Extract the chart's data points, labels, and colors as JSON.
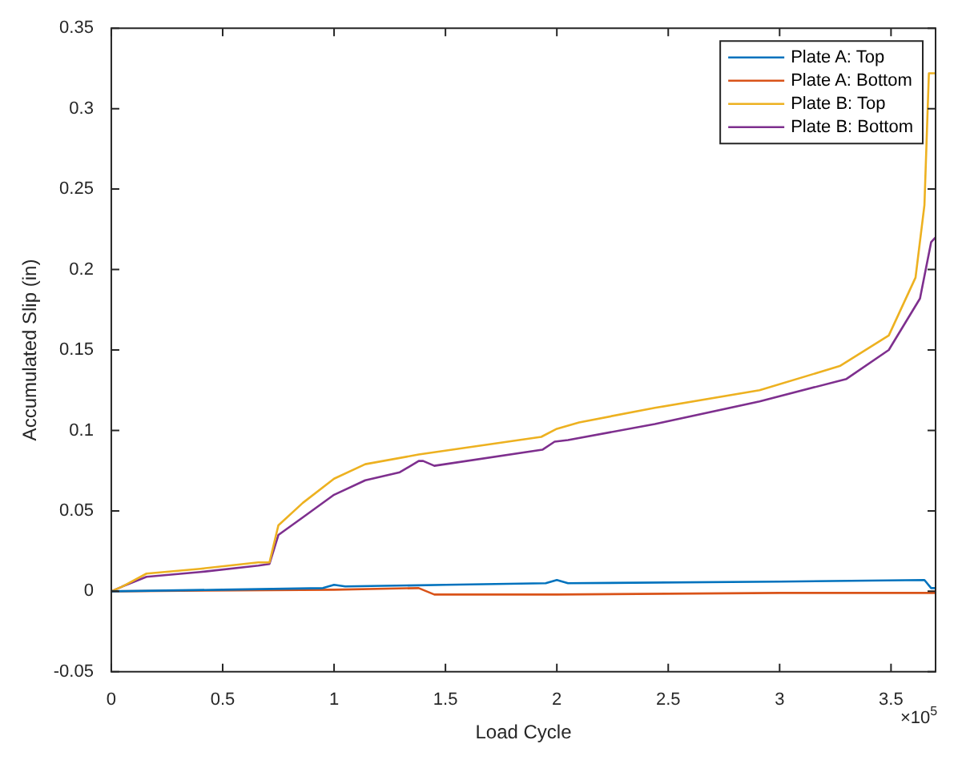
{
  "chart_data": {
    "type": "line",
    "xlabel": "Load Cycle",
    "ylabel": "Accumulated Slip (in)",
    "annotations": [
      "×10$^{5}$"
    ],
    "xlim": [
      0,
      3.7
    ],
    "xticks": [
      0,
      0.5,
      1,
      1.5,
      2,
      2.5,
      3,
      3.5
    ],
    "ylim": [
      -0.05,
      0.35
    ],
    "yticks": [
      -0.05,
      0,
      0.05,
      0.1,
      0.15,
      0.2,
      0.25,
      0.3,
      0.35
    ],
    "grid": false,
    "legend": "top right",
    "marker": "none",
    "line_style": "solid",
    "series": [
      {
        "name": "Plate A: Top",
        "color": "#0072bd",
        "x": [
          0,
          0.5,
          0.95,
          1.0,
          1.05,
          1.5,
          1.95,
          2.0,
          2.05,
          3.0,
          3.65,
          3.68,
          3.7
        ],
        "values": [
          0,
          0.001,
          0.002,
          0.004,
          0.003,
          0.004,
          0.005,
          0.007,
          0.005,
          0.006,
          0.007,
          0.002,
          0.002
        ]
      },
      {
        "name": "Plate A: Bottom",
        "color": "#d95319",
        "x": [
          0,
          1.0,
          1.38,
          1.45,
          2.0,
          3.0,
          3.7
        ],
        "values": [
          0,
          0.001,
          0.002,
          -0.002,
          -0.002,
          -0.001,
          -0.001
        ]
      },
      {
        "name": "Plate B: Top",
        "color": "#edb120",
        "x": [
          0,
          0.05,
          0.158,
          0.4,
          0.66,
          0.71,
          0.75,
          0.86,
          1.0,
          1.14,
          1.38,
          1.93,
          2.0,
          2.1,
          2.44,
          2.91,
          3.27,
          3.49,
          3.61,
          3.65,
          3.67,
          3.7
        ],
        "values": [
          0,
          0.003,
          0.011,
          0.014,
          0.018,
          0.018,
          0.041,
          0.055,
          0.07,
          0.079,
          0.085,
          0.096,
          0.101,
          0.105,
          0.114,
          0.125,
          0.14,
          0.159,
          0.195,
          0.24,
          0.322,
          0.322
        ]
      },
      {
        "name": "Plate B: Bottom",
        "color": "#7e2f8e",
        "x": [
          0,
          0.05,
          0.158,
          0.4,
          0.66,
          0.71,
          0.75,
          0.86,
          1.0,
          1.14,
          1.295,
          1.38,
          1.4,
          1.45,
          1.935,
          1.99,
          2.05,
          2.44,
          2.91,
          3.3,
          3.49,
          3.63,
          3.68,
          3.7
        ],
        "values": [
          0,
          0.003,
          0.009,
          0.012,
          0.016,
          0.017,
          0.035,
          0.046,
          0.06,
          0.069,
          0.074,
          0.081,
          0.081,
          0.078,
          0.088,
          0.093,
          0.094,
          0.104,
          0.118,
          0.132,
          0.15,
          0.182,
          0.217,
          0.22
        ]
      }
    ]
  }
}
